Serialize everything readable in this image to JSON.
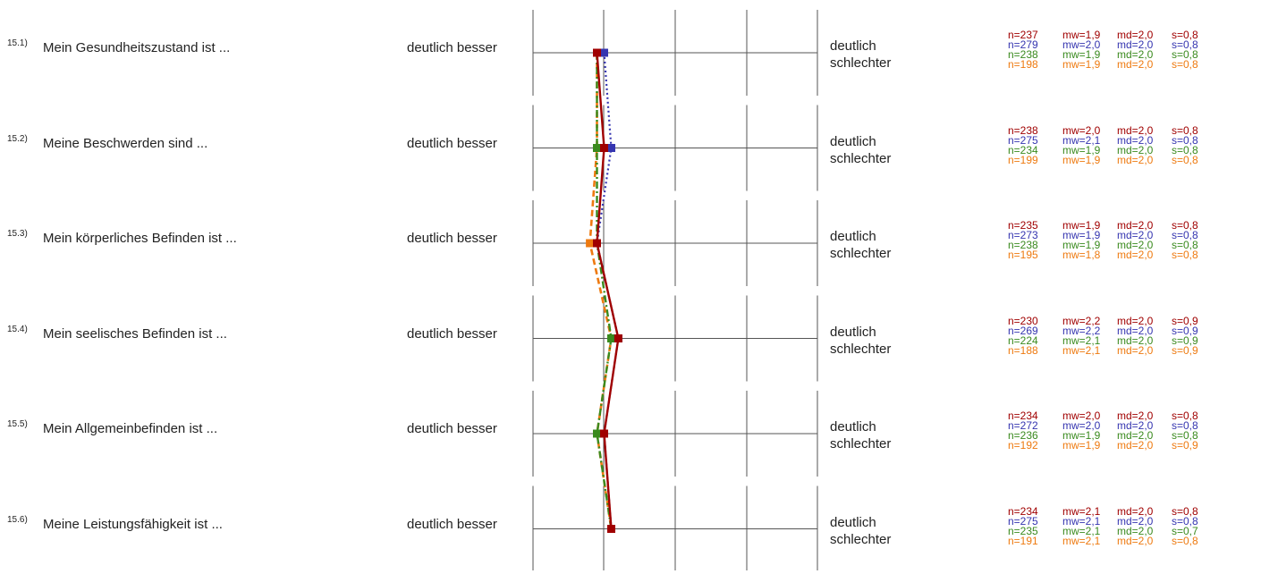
{
  "chart_data": {
    "type": "line",
    "scale_labels": {
      "left": "deutlich besser",
      "right": "deutlich schlechter"
    },
    "scale_range": [
      1,
      5
    ],
    "orientation": "horizontal profile",
    "grid": true,
    "items": [
      {
        "number": "15.1)",
        "text": "Mein Gesundheitszustand ist ...",
        "label_left": "deutlich besser",
        "label_right_1": "deutlich",
        "label_right_2": "schlechter"
      },
      {
        "number": "15.2)",
        "text": "Meine Beschwerden sind ...",
        "label_left": "deutlich besser",
        "label_right_1": "deutlich",
        "label_right_2": "schlechter"
      },
      {
        "number": "15.3)",
        "text": "Mein körperliches Befinden ist ...",
        "label_left": "deutlich besser",
        "label_right_1": "deutlich",
        "label_right_2": "schlechter"
      },
      {
        "number": "15.4)",
        "text": "Mein seelisches Befinden ist ...",
        "label_left": "deutlich besser",
        "label_right_1": "deutlich",
        "label_right_2": "schlechter"
      },
      {
        "number": "15.5)",
        "text": "Mein Allgemeinbefinden ist ...",
        "label_left": "deutlich besser",
        "label_right_1": "deutlich",
        "label_right_2": "schlechter"
      },
      {
        "number": "15.6)",
        "text": "Meine Leistungsfähigkeit ist ...",
        "label_left": "deutlich besser",
        "label_right_1": "deutlich",
        "label_right_2": "schlechter"
      }
    ],
    "series": [
      {
        "color": "#a00000",
        "line_style": "solid",
        "means": [
          1.9,
          2.0,
          1.9,
          2.2,
          2.0,
          2.1
        ],
        "stats": [
          {
            "n": "n=237",
            "mw": "mw=1,9",
            "md": "md=2,0",
            "s": "s=0,8"
          },
          {
            "n": "n=238",
            "mw": "mw=2,0",
            "md": "md=2,0",
            "s": "s=0,8"
          },
          {
            "n": "n=235",
            "mw": "mw=1,9",
            "md": "md=2,0",
            "s": "s=0,8"
          },
          {
            "n": "n=230",
            "mw": "mw=2,2",
            "md": "md=2,0",
            "s": "s=0,9"
          },
          {
            "n": "n=234",
            "mw": "mw=2,0",
            "md": "md=2,0",
            "s": "s=0,8"
          },
          {
            "n": "n=234",
            "mw": "mw=2,1",
            "md": "md=2,0",
            "s": "s=0,8"
          }
        ]
      },
      {
        "color": "#3535b0",
        "line_style": "dotted",
        "means": [
          2.0,
          2.1,
          1.9,
          2.2,
          2.0,
          2.1
        ],
        "stats": [
          {
            "n": "n=279",
            "mw": "mw=2,0",
            "md": "md=2,0",
            "s": "s=0,8"
          },
          {
            "n": "n=275",
            "mw": "mw=2,1",
            "md": "md=2,0",
            "s": "s=0,8"
          },
          {
            "n": "n=273",
            "mw": "mw=1,9",
            "md": "md=2,0",
            "s": "s=0,8"
          },
          {
            "n": "n=269",
            "mw": "mw=2,2",
            "md": "md=2,0",
            "s": "s=0,9"
          },
          {
            "n": "n=272",
            "mw": "mw=2,0",
            "md": "md=2,0",
            "s": "s=0,8"
          },
          {
            "n": "n=275",
            "mw": "mw=2,1",
            "md": "md=2,0",
            "s": "s=0,8"
          }
        ]
      },
      {
        "color": "#3a8a1e",
        "line_style": "dashdot",
        "means": [
          1.9,
          1.9,
          1.9,
          2.1,
          1.9,
          2.1
        ],
        "stats": [
          {
            "n": "n=238",
            "mw": "mw=1,9",
            "md": "md=2,0",
            "s": "s=0,8"
          },
          {
            "n": "n=234",
            "mw": "mw=1,9",
            "md": "md=2,0",
            "s": "s=0,8"
          },
          {
            "n": "n=238",
            "mw": "mw=1,9",
            "md": "md=2,0",
            "s": "s=0,8"
          },
          {
            "n": "n=224",
            "mw": "mw=2,1",
            "md": "md=2,0",
            "s": "s=0,9"
          },
          {
            "n": "n=236",
            "mw": "mw=1,9",
            "md": "md=2,0",
            "s": "s=0,8"
          },
          {
            "n": "n=235",
            "mw": "mw=2,1",
            "md": "md=2,0",
            "s": "s=0,7"
          }
        ]
      },
      {
        "color": "#ee7a10",
        "line_style": "dashed",
        "means": [
          1.9,
          1.9,
          1.8,
          2.1,
          1.9,
          2.1
        ],
        "stats": [
          {
            "n": "n=198",
            "mw": "mw=1,9",
            "md": "md=2,0",
            "s": "s=0,8"
          },
          {
            "n": "n=199",
            "mw": "mw=1,9",
            "md": "md=2,0",
            "s": "s=0,8"
          },
          {
            "n": "n=195",
            "mw": "mw=1,8",
            "md": "md=2,0",
            "s": "s=0,8"
          },
          {
            "n": "n=188",
            "mw": "mw=2,1",
            "md": "md=2,0",
            "s": "s=0,9"
          },
          {
            "n": "n=192",
            "mw": "mw=1,9",
            "md": "md=2,0",
            "s": "s=0,9"
          },
          {
            "n": "n=191",
            "mw": "mw=2,1",
            "md": "md=2,0",
            "s": "s=0,8"
          }
        ]
      }
    ]
  }
}
